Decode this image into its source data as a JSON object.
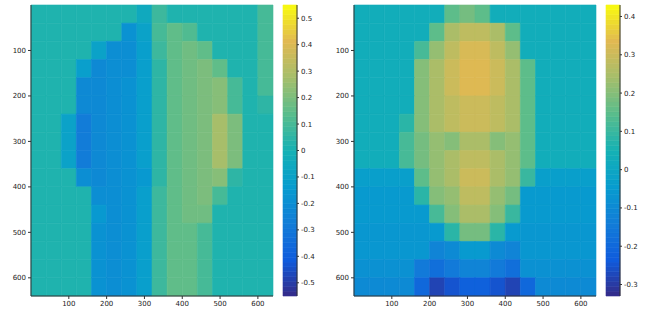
{
  "chart_data": [
    {
      "type": "heatmap",
      "x": [
        20,
        60,
        100,
        140,
        180,
        220,
        260,
        300,
        340,
        380,
        420,
        460,
        500,
        540,
        580,
        620
      ],
      "y": [
        20,
        60,
        100,
        140,
        180,
        220,
        260,
        300,
        340,
        380,
        420,
        460,
        500,
        540,
        580,
        620
      ],
      "xlim": [
        0,
        640
      ],
      "ylim": [
        640,
        0
      ],
      "xticks": [
        100,
        200,
        300,
        400,
        500,
        600
      ],
      "yticks": [
        100,
        200,
        300,
        400,
        500,
        600
      ],
      "cells": [
        [
          0.02,
          0.02,
          0.02,
          0.02,
          0.02,
          0.02,
          0.02,
          -0.05,
          0.08,
          0.02,
          0.02,
          0.02,
          0.02,
          0.02,
          0.02,
          0.1
        ],
        [
          0.02,
          0.02,
          0.02,
          0.02,
          0.02,
          0.02,
          -0.18,
          -0.1,
          0.1,
          0.15,
          0.12,
          0.02,
          0.02,
          0.02,
          0.02,
          0.1
        ],
        [
          0.02,
          0.02,
          0.02,
          0.02,
          -0.1,
          -0.2,
          -0.2,
          -0.12,
          0.08,
          0.15,
          0.18,
          0.15,
          0.02,
          0.02,
          0.02,
          0.1
        ],
        [
          0.02,
          0.02,
          0.02,
          -0.12,
          -0.22,
          -0.2,
          -0.2,
          -0.12,
          0.05,
          0.15,
          0.18,
          0.2,
          0.15,
          0.02,
          0.02,
          0.1
        ],
        [
          0.02,
          0.02,
          0.02,
          -0.22,
          -0.22,
          -0.2,
          -0.18,
          -0.12,
          0.05,
          0.15,
          0.18,
          0.2,
          0.22,
          0.1,
          0.02,
          0.1
        ],
        [
          0.02,
          0.02,
          0.02,
          -0.22,
          -0.22,
          -0.2,
          -0.18,
          -0.12,
          0.05,
          0.15,
          0.18,
          0.2,
          0.22,
          0.1,
          0.02,
          0.05
        ],
        [
          0.02,
          0.02,
          -0.1,
          -0.28,
          -0.22,
          -0.2,
          -0.18,
          -0.12,
          0.05,
          0.15,
          0.18,
          0.2,
          0.28,
          0.2,
          0.02,
          0.02
        ],
        [
          0.02,
          0.02,
          -0.1,
          -0.28,
          -0.22,
          -0.2,
          -0.18,
          -0.12,
          0.05,
          0.15,
          0.18,
          0.2,
          0.28,
          0.2,
          0.02,
          0.02
        ],
        [
          0.02,
          0.02,
          -0.1,
          -0.28,
          -0.22,
          -0.2,
          -0.18,
          -0.12,
          0.05,
          0.15,
          0.18,
          0.2,
          0.28,
          0.2,
          0.02,
          0.02
        ],
        [
          0.02,
          0.02,
          0.02,
          -0.2,
          -0.22,
          -0.2,
          -0.18,
          -0.15,
          0.05,
          0.15,
          0.18,
          0.2,
          0.22,
          0.05,
          0.02,
          0.02
        ],
        [
          0.02,
          0.02,
          0.02,
          0.02,
          -0.2,
          -0.2,
          -0.18,
          -0.12,
          0.08,
          0.15,
          0.18,
          0.2,
          0.1,
          0.02,
          0.02,
          0.02
        ],
        [
          0.02,
          0.02,
          0.02,
          0.02,
          -0.15,
          -0.2,
          -0.18,
          -0.12,
          0.08,
          0.15,
          0.18,
          0.18,
          0.02,
          0.02,
          0.02,
          0.02
        ],
        [
          0.02,
          0.02,
          0.02,
          0.02,
          -0.18,
          -0.2,
          -0.18,
          -0.12,
          0.08,
          0.15,
          0.15,
          0.1,
          0.02,
          0.02,
          0.02,
          0.02
        ],
        [
          0.02,
          0.02,
          0.02,
          0.02,
          -0.18,
          -0.2,
          -0.18,
          -0.12,
          0.08,
          0.15,
          0.15,
          0.1,
          0.02,
          0.02,
          0.02,
          0.02
        ],
        [
          0.02,
          0.02,
          0.02,
          0.02,
          -0.18,
          -0.2,
          -0.18,
          -0.12,
          0.08,
          0.15,
          0.15,
          0.1,
          0.02,
          0.02,
          0.02,
          0.02
        ],
        [
          0.02,
          0.02,
          0.02,
          0.02,
          -0.18,
          -0.2,
          -0.18,
          -0.12,
          0.08,
          0.15,
          0.15,
          0.1,
          0.02,
          0.02,
          0.02,
          0.02
        ]
      ],
      "colorbar": {
        "range": [
          -0.55,
          0.55
        ],
        "ticks": [
          -0.5,
          -0.4,
          -0.3,
          -0.2,
          -0.1,
          0,
          0.1,
          0.2,
          0.3,
          0.4,
          0.5
        ]
      }
    },
    {
      "type": "heatmap",
      "x": [
        20,
        60,
        100,
        140,
        180,
        220,
        260,
        300,
        340,
        380,
        420,
        460,
        500,
        540,
        580,
        620
      ],
      "y": [
        20,
        60,
        100,
        140,
        180,
        220,
        260,
        300,
        340,
        380,
        420,
        460,
        500,
        540,
        580,
        620
      ],
      "xlim": [
        0,
        640
      ],
      "ylim": [
        640,
        0
      ],
      "xticks": [
        100,
        200,
        300,
        400,
        500,
        600
      ],
      "yticks": [
        100,
        200,
        300,
        400,
        500,
        600
      ],
      "cells": [
        [
          0.03,
          0.03,
          0.03,
          0.03,
          0.03,
          0.03,
          0.15,
          0.18,
          0.15,
          0.03,
          0.03,
          0.03,
          0.03,
          0.03,
          0.03,
          0.03
        ],
        [
          0.03,
          0.03,
          0.03,
          0.03,
          0.03,
          0.15,
          0.25,
          0.28,
          0.28,
          0.25,
          0.15,
          0.03,
          0.03,
          0.03,
          0.03,
          0.03
        ],
        [
          0.03,
          0.03,
          0.03,
          0.03,
          0.12,
          0.22,
          0.28,
          0.32,
          0.32,
          0.28,
          0.22,
          0.03,
          0.03,
          0.03,
          0.03,
          0.03
        ],
        [
          0.03,
          0.03,
          0.03,
          0.03,
          0.2,
          0.25,
          0.3,
          0.33,
          0.33,
          0.3,
          0.25,
          0.15,
          0.03,
          0.03,
          0.03,
          0.03
        ],
        [
          0.03,
          0.03,
          0.03,
          0.03,
          0.2,
          0.25,
          0.3,
          0.33,
          0.33,
          0.3,
          0.25,
          0.15,
          0.03,
          0.03,
          0.03,
          0.03
        ],
        [
          0.03,
          0.03,
          0.03,
          0.03,
          0.2,
          0.25,
          0.28,
          0.3,
          0.3,
          0.28,
          0.25,
          0.15,
          0.03,
          0.03,
          0.03,
          0.03
        ],
        [
          0.03,
          0.03,
          0.03,
          0.08,
          0.2,
          0.25,
          0.28,
          0.3,
          0.3,
          0.28,
          0.25,
          0.15,
          0.03,
          0.03,
          0.03,
          0.03
        ],
        [
          0.03,
          0.03,
          0.03,
          0.12,
          0.18,
          0.22,
          0.2,
          0.25,
          0.25,
          0.2,
          0.22,
          0.15,
          0.03,
          0.03,
          0.03,
          0.03
        ],
        [
          0.03,
          0.03,
          0.03,
          0.12,
          0.18,
          0.22,
          0.25,
          0.28,
          0.28,
          0.25,
          0.22,
          0.15,
          0.03,
          0.03,
          0.03,
          0.03
        ],
        [
          -0.03,
          -0.03,
          -0.03,
          -0.03,
          0.15,
          0.22,
          0.25,
          0.3,
          0.3,
          0.25,
          0.22,
          0.1,
          -0.03,
          -0.03,
          -0.03,
          -0.03
        ],
        [
          -0.05,
          -0.05,
          -0.05,
          -0.05,
          0.08,
          0.2,
          0.22,
          0.28,
          0.28,
          0.22,
          0.18,
          -0.05,
          -0.05,
          -0.05,
          -0.05,
          -0.05
        ],
        [
          -0.05,
          -0.05,
          -0.05,
          -0.05,
          -0.05,
          0.12,
          0.2,
          0.25,
          0.25,
          0.2,
          0.1,
          -0.05,
          -0.05,
          -0.05,
          -0.05,
          -0.05
        ],
        [
          -0.06,
          -0.06,
          -0.06,
          -0.06,
          -0.06,
          -0.05,
          0.08,
          0.18,
          0.18,
          0.08,
          -0.05,
          -0.06,
          -0.06,
          -0.06,
          -0.06,
          -0.06
        ],
        [
          -0.06,
          -0.06,
          -0.06,
          -0.06,
          -0.06,
          -0.12,
          -0.1,
          -0.05,
          -0.05,
          -0.1,
          -0.12,
          -0.06,
          -0.06,
          -0.06,
          -0.06,
          -0.06
        ],
        [
          -0.08,
          -0.08,
          -0.08,
          -0.08,
          -0.15,
          -0.18,
          -0.15,
          -0.12,
          -0.12,
          -0.15,
          -0.18,
          -0.08,
          -0.08,
          -0.08,
          -0.08,
          -0.08
        ],
        [
          -0.1,
          -0.1,
          -0.1,
          -0.1,
          -0.2,
          -0.28,
          -0.25,
          -0.22,
          -0.22,
          -0.25,
          -0.28,
          -0.2,
          -0.1,
          -0.1,
          -0.1,
          -0.1
        ]
      ],
      "colorbar": {
        "range": [
          -0.33,
          0.43
        ],
        "ticks": [
          -0.3,
          -0.2,
          -0.1,
          0,
          0.1,
          0.2,
          0.3,
          0.4
        ]
      }
    }
  ]
}
